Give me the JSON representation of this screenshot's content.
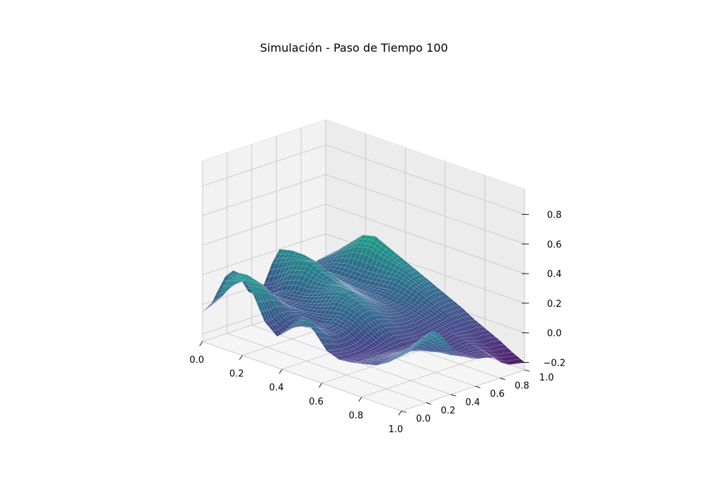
{
  "chart_data": {
    "type": "surface",
    "title": "Simulación - Paso de Tiempo 100",
    "xlabel": "",
    "ylabel": "",
    "zlabel": "",
    "xlim": [
      0.0,
      1.0
    ],
    "ylim": [
      0.0,
      1.0
    ],
    "zlim": [
      -0.25,
      0.97
    ],
    "x_ticks": [
      "0.0",
      "0.2",
      "0.4",
      "0.6",
      "0.8",
      "1.0"
    ],
    "y_ticks": [
      "0.0",
      "0.2",
      "0.4",
      "0.6",
      "0.8",
      "1.0"
    ],
    "z_ticks": [
      "−0.2",
      "0.0",
      "0.2",
      "0.4",
      "0.6",
      "0.8"
    ],
    "z_tick_values": [
      -0.2,
      0.0,
      0.2,
      0.4,
      0.6,
      0.8
    ],
    "colormap": "viridis",
    "grid": true,
    "surface": {
      "x": [
        0,
        0.0625,
        0.125,
        0.1875,
        0.25,
        0.3125,
        0.375,
        0.4375,
        0.5,
        0.5625,
        0.625,
        0.6875,
        0.75,
        0.8125,
        0.875,
        0.9375,
        1.0
      ],
      "y": [
        0,
        0.0625,
        0.125,
        0.1875,
        0.25,
        0.3125,
        0.375,
        0.4375,
        0.5,
        0.5625,
        0.625,
        0.6875,
        0.75,
        0.8125,
        0.875,
        0.9375,
        1.0
      ],
      "z": [
        [
          -0.05,
          0.06,
          0.22,
          0.3,
          0.2,
          0.03,
          -0.04,
          0.06,
          0.15,
          0.08,
          -0.02,
          -0.05,
          -0.04,
          -0.02,
          0.0,
          0.05,
          0.12
        ],
        [
          -0.03,
          0.07,
          0.2,
          0.27,
          0.18,
          0.03,
          -0.03,
          0.05,
          0.12,
          0.06,
          -0.03,
          -0.06,
          -0.05,
          -0.02,
          0.01,
          0.06,
          0.13
        ],
        [
          0.06,
          0.12,
          0.18,
          0.22,
          0.16,
          0.05,
          0.0,
          0.02,
          0.04,
          0.02,
          -0.04,
          -0.06,
          -0.05,
          -0.02,
          0.02,
          0.08,
          0.16
        ],
        [
          0.14,
          0.16,
          0.18,
          0.17,
          0.12,
          0.05,
          0.01,
          0.0,
          0.02,
          0.01,
          -0.04,
          -0.06,
          -0.05,
          -0.02,
          0.03,
          0.11,
          0.2
        ],
        [
          0.16,
          0.15,
          0.12,
          0.09,
          0.06,
          0.03,
          0.01,
          0.01,
          0.03,
          0.02,
          -0.03,
          -0.05,
          -0.05,
          -0.02,
          0.04,
          0.13,
          0.22
        ],
        [
          0.08,
          0.08,
          0.06,
          0.03,
          0.02,
          0.02,
          0.03,
          0.05,
          0.07,
          0.05,
          0.0,
          -0.04,
          -0.05,
          -0.03,
          0.03,
          0.11,
          0.18
        ],
        [
          -0.02,
          0.0,
          0.02,
          0.02,
          0.03,
          0.05,
          0.08,
          0.12,
          0.12,
          0.09,
          0.03,
          -0.02,
          -0.05,
          -0.04,
          0.0,
          0.06,
          0.1
        ],
        [
          -0.06,
          -0.03,
          0.03,
          0.06,
          0.07,
          0.1,
          0.14,
          0.16,
          0.14,
          0.1,
          0.04,
          -0.01,
          -0.05,
          -0.05,
          -0.03,
          0.0,
          0.03
        ],
        [
          0.0,
          0.05,
          0.12,
          0.15,
          0.14,
          0.14,
          0.16,
          0.16,
          0.12,
          0.08,
          0.03,
          -0.02,
          -0.05,
          -0.06,
          -0.05,
          -0.04,
          -0.02
        ],
        [
          0.12,
          0.16,
          0.2,
          0.22,
          0.18,
          0.15,
          0.14,
          0.12,
          0.09,
          0.05,
          0.01,
          -0.03,
          -0.05,
          -0.06,
          -0.06,
          -0.06,
          -0.05
        ],
        [
          0.2,
          0.22,
          0.22,
          0.2,
          0.16,
          0.12,
          0.1,
          0.08,
          0.06,
          0.03,
          0.0,
          -0.03,
          -0.05,
          -0.06,
          -0.07,
          -0.07,
          -0.07
        ],
        [
          0.16,
          0.17,
          0.15,
          0.12,
          0.1,
          0.08,
          0.06,
          0.05,
          0.04,
          0.02,
          0.0,
          -0.02,
          -0.04,
          -0.05,
          -0.06,
          -0.07,
          -0.08
        ],
        [
          0.06,
          0.08,
          0.08,
          0.07,
          0.06,
          0.05,
          0.05,
          0.05,
          0.04,
          0.03,
          0.01,
          -0.01,
          -0.03,
          -0.04,
          -0.06,
          -0.08,
          -0.1
        ],
        [
          0.0,
          0.04,
          0.06,
          0.06,
          0.06,
          0.06,
          0.07,
          0.08,
          0.07,
          0.05,
          0.03,
          0.0,
          -0.02,
          -0.05,
          -0.08,
          -0.12,
          -0.15
        ],
        [
          0.02,
          0.06,
          0.1,
          0.12,
          0.12,
          0.12,
          0.13,
          0.14,
          0.12,
          0.09,
          0.05,
          0.02,
          -0.02,
          -0.06,
          -0.1,
          -0.14,
          -0.18
        ],
        [
          0.04,
          0.1,
          0.16,
          0.22,
          0.24,
          0.22,
          0.2,
          0.18,
          0.14,
          0.1,
          0.06,
          0.02,
          -0.02,
          -0.06,
          -0.1,
          -0.15,
          -0.19
        ],
        [
          0.05,
          0.12,
          0.2,
          0.28,
          0.3,
          0.26,
          0.22,
          0.18,
          0.14,
          0.1,
          0.06,
          0.02,
          -0.03,
          -0.07,
          -0.11,
          -0.16,
          -0.2
        ]
      ]
    }
  }
}
